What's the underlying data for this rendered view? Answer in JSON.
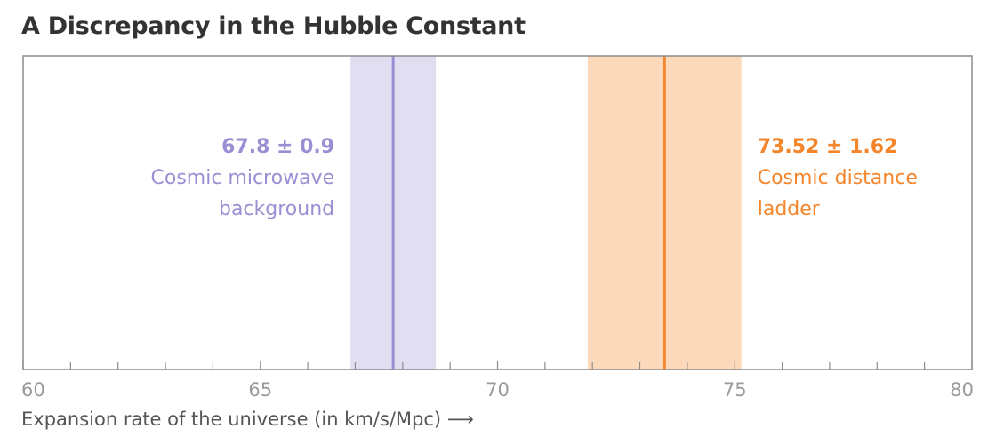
{
  "chart_data": {
    "type": "interval",
    "title": "A Discrepancy in the Hubble Constant",
    "xlabel": "Expansion rate of the universe (in km/s/Mpc) ⟶",
    "xlim": [
      60,
      80
    ],
    "major_ticks": [
      60,
      65,
      70,
      75,
      80
    ],
    "minor_tick_step": 1,
    "tick_labels": [
      "60",
      "65",
      "70",
      "75",
      "80"
    ],
    "series": [
      {
        "name": "Cosmic microwave background",
        "value": 67.8,
        "uncertainty": 0.9,
        "value_label": "67.8 ± 0.9",
        "label_lines": [
          "Cosmic microwave",
          "background"
        ],
        "label_side": "left",
        "line_color": "#9b8fd4",
        "band_color": "#e2def2",
        "text_color": "#9b8fd4"
      },
      {
        "name": "Cosmic distance ladder",
        "value": 73.52,
        "uncertainty": 1.62,
        "value_label": "73.52 ± 1.62",
        "label_lines": [
          "Cosmic distance",
          "ladder"
        ],
        "label_side": "right",
        "line_color": "#f5852a",
        "band_color": "#fcd9bb",
        "text_color": "#f5852a"
      }
    ]
  }
}
